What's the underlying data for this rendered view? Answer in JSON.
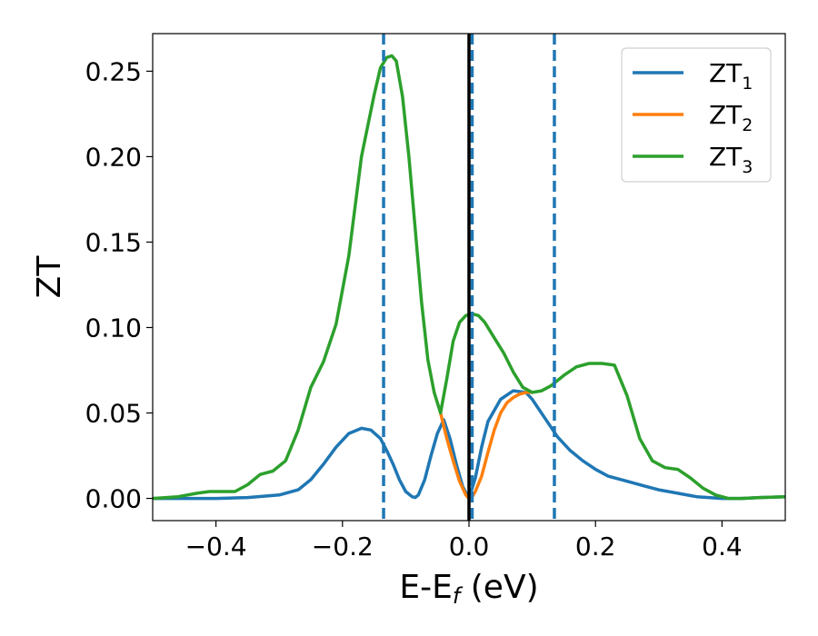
{
  "chart_data": {
    "type": "line",
    "xlabel": "E-E",
    "xlabel_sub": "f",
    "xlabel_unit": " (eV)",
    "ylabel": "ZT",
    "xlim": [
      -0.5,
      0.5
    ],
    "ylim": [
      -0.013,
      0.272
    ],
    "xticks": [
      -0.4,
      -0.2,
      0.0,
      0.2,
      0.4
    ],
    "xtick_labels": [
      "−0.4",
      "−0.2",
      "0.0",
      "0.2",
      "0.4"
    ],
    "yticks": [
      0.0,
      0.05,
      0.1,
      0.15,
      0.2,
      0.25
    ],
    "ytick_labels": [
      "0.00",
      "0.05",
      "0.10",
      "0.15",
      "0.20",
      "0.25"
    ],
    "grid": false,
    "legend_position": "top-right",
    "vlines": [
      {
        "x": -0.135,
        "style": "dashed",
        "color": "#1f77b4"
      },
      {
        "x": 0.005,
        "style": "dashed",
        "color": "#1f77b4"
      },
      {
        "x": 0.135,
        "style": "dashed",
        "color": "#1f77b4"
      },
      {
        "x": 0.0,
        "style": "solid",
        "color": "#000000"
      }
    ],
    "series": [
      {
        "name": "ZT",
        "sub": "1",
        "color": "#1f77b4",
        "x": [
          -0.5,
          -0.45,
          -0.4,
          -0.35,
          -0.3,
          -0.27,
          -0.25,
          -0.23,
          -0.21,
          -0.19,
          -0.17,
          -0.155,
          -0.14,
          -0.13,
          -0.12,
          -0.11,
          -0.1,
          -0.09,
          -0.085,
          -0.08,
          -0.07,
          -0.06,
          -0.05,
          -0.04,
          -0.03,
          -0.02,
          -0.01,
          0.0,
          0.01,
          0.02,
          0.03,
          0.05,
          0.07,
          0.09,
          0.1,
          0.12,
          0.14,
          0.16,
          0.18,
          0.2,
          0.22,
          0.25,
          0.28,
          0.3,
          0.33,
          0.36,
          0.4,
          0.43,
          0.46,
          0.5
        ],
        "y": [
          0.0,
          0.0,
          0.0,
          0.0005,
          0.002,
          0.005,
          0.011,
          0.02,
          0.03,
          0.038,
          0.041,
          0.04,
          0.035,
          0.028,
          0.02,
          0.011,
          0.004,
          0.001,
          0.0005,
          0.002,
          0.011,
          0.025,
          0.038,
          0.046,
          0.035,
          0.02,
          0.007,
          0.0,
          0.012,
          0.03,
          0.045,
          0.058,
          0.063,
          0.062,
          0.058,
          0.047,
          0.036,
          0.028,
          0.022,
          0.017,
          0.013,
          0.01,
          0.007,
          0.005,
          0.003,
          0.001,
          0.0,
          0.0,
          0.0005,
          0.001
        ]
      },
      {
        "name": "ZT",
        "sub": "2",
        "color": "#ff7f0e",
        "x": [
          -0.045,
          -0.035,
          -0.025,
          -0.015,
          -0.005,
          0.0,
          0.005,
          0.01,
          0.02,
          0.03,
          0.04,
          0.05,
          0.06,
          0.07,
          0.08,
          0.09,
          0.1
        ],
        "y": [
          0.05,
          0.035,
          0.022,
          0.01,
          0.002,
          0.0,
          0.001,
          0.004,
          0.013,
          0.027,
          0.04,
          0.05,
          0.056,
          0.059,
          0.061,
          0.062,
          0.062
        ]
      },
      {
        "name": "ZT",
        "sub": "3",
        "color": "#2ca02c",
        "x": [
          -0.5,
          -0.46,
          -0.43,
          -0.41,
          -0.39,
          -0.37,
          -0.35,
          -0.33,
          -0.31,
          -0.29,
          -0.27,
          -0.25,
          -0.23,
          -0.21,
          -0.19,
          -0.17,
          -0.15,
          -0.14,
          -0.13,
          -0.122,
          -0.115,
          -0.105,
          -0.095,
          -0.085,
          -0.075,
          -0.065,
          -0.055,
          -0.045,
          -0.035,
          -0.025,
          -0.015,
          -0.005,
          0.005,
          0.015,
          0.025,
          0.04,
          0.055,
          0.07,
          0.085,
          0.1,
          0.115,
          0.13,
          0.15,
          0.17,
          0.19,
          0.21,
          0.23,
          0.25,
          0.27,
          0.29,
          0.31,
          0.33,
          0.35,
          0.37,
          0.39,
          0.41,
          0.43,
          0.46,
          0.5
        ],
        "y": [
          0.0,
          0.001,
          0.003,
          0.004,
          0.004,
          0.004,
          0.008,
          0.014,
          0.016,
          0.022,
          0.04,
          0.065,
          0.08,
          0.102,
          0.142,
          0.2,
          0.236,
          0.252,
          0.258,
          0.259,
          0.256,
          0.235,
          0.2,
          0.158,
          0.115,
          0.081,
          0.062,
          0.05,
          0.07,
          0.092,
          0.103,
          0.107,
          0.108,
          0.107,
          0.103,
          0.094,
          0.085,
          0.074,
          0.065,
          0.062,
          0.063,
          0.066,
          0.072,
          0.077,
          0.079,
          0.079,
          0.078,
          0.06,
          0.035,
          0.022,
          0.018,
          0.017,
          0.012,
          0.006,
          0.002,
          0.0,
          0.0,
          0.0005,
          0.001
        ]
      }
    ]
  }
}
